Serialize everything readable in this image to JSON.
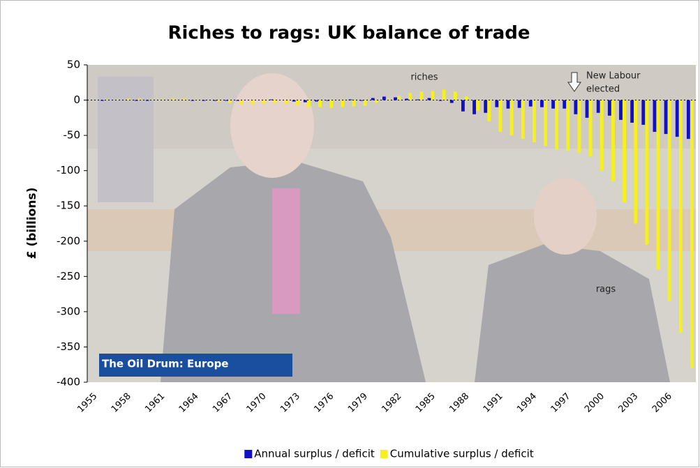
{
  "chart_data": {
    "type": "bar",
    "title": "Riches to rags: UK balance of trade",
    "y_label": "£ (billions)",
    "categories": [
      "1955",
      null,
      null,
      "1958",
      null,
      null,
      "1961",
      null,
      null,
      "1964",
      null,
      null,
      "1967",
      null,
      null,
      "1970",
      null,
      null,
      "1973",
      null,
      null,
      "1976",
      null,
      null,
      "1979",
      null,
      null,
      "1982",
      null,
      null,
      "1985",
      null,
      null,
      "1988",
      null,
      null,
      "1991",
      null,
      null,
      "1994",
      null,
      null,
      "1997",
      null,
      null,
      "2000",
      null,
      null,
      "2003",
      null,
      null,
      "2006",
      null,
      null
    ],
    "series": [
      {
        "name": "Annual surplus / deficit",
        "color": "#1010c8",
        "values": [
          0,
          -1,
          0,
          0,
          -1,
          -1,
          0,
          0,
          0,
          -1,
          -1,
          -1,
          -1,
          -1,
          0,
          0,
          1,
          0,
          -2,
          -3,
          -2,
          -1,
          0,
          1,
          -1,
          3,
          5,
          4,
          2,
          1,
          3,
          -1,
          -4,
          -16,
          -20,
          -18,
          -10,
          -12,
          -11,
          -9,
          -10,
          -12,
          -12,
          -20,
          -25,
          -18,
          -22,
          -28,
          -32,
          -35,
          -45,
          -48,
          -52,
          -55
        ]
      },
      {
        "name": "Cumulative surplus / deficit",
        "color": "#f5f01e",
        "values": [
          0,
          1,
          1,
          2,
          2,
          1,
          1,
          2,
          2,
          1,
          0,
          -2,
          -4,
          -6,
          -6,
          -5,
          -4,
          -5,
          -7,
          -10,
          -10,
          -11,
          -10,
          -9,
          -8,
          -4,
          2,
          6,
          10,
          12,
          13,
          15,
          12,
          5,
          -15,
          -30,
          -45,
          -50,
          -55,
          -60,
          -65,
          -70,
          -72,
          -75,
          -80,
          -100,
          -115,
          -145,
          -175,
          -205,
          -240,
          -285,
          -330,
          -380
        ]
      }
    ],
    "ylim": [
      -400,
      50
    ],
    "yticks": [
      50,
      0,
      -50,
      -100,
      -150,
      -200,
      -250,
      -300,
      -350,
      -400
    ],
    "annotations": [
      "riches",
      "New Labour",
      "elected",
      "rags"
    ],
    "logo": "The Oil Drum: Europe",
    "legend": "bottom"
  }
}
